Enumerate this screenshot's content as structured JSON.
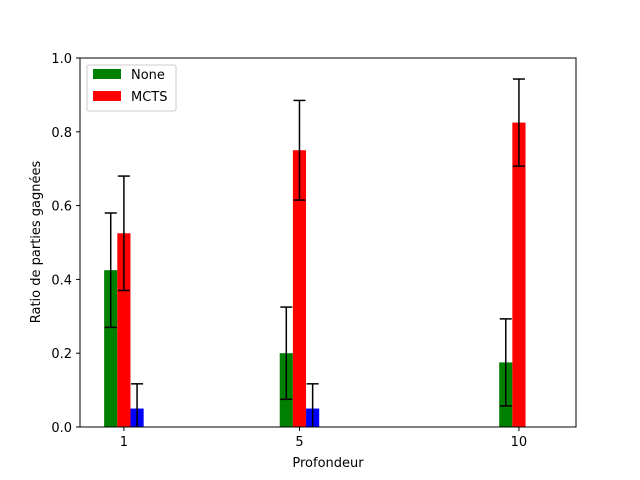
{
  "chart_data": {
    "type": "bar",
    "title": "",
    "xlabel": "Profondeur",
    "ylabel": "Ratio de parties gagnées",
    "ylim": [
      0,
      1.0
    ],
    "xlim": [
      0,
      11.3
    ],
    "yticks": [
      "0.0",
      "0.2",
      "0.4",
      "0.6",
      "0.8",
      "1.0"
    ],
    "categories": [
      "1",
      "5",
      "10"
    ],
    "x_positions": [
      1,
      5,
      10
    ],
    "bar_width_units": 0.3,
    "legend_position": "top-left",
    "series": [
      {
        "name": "None",
        "color": "#008000",
        "show_in_legend": true,
        "values": [
          0.425,
          0.2,
          0.175
        ],
        "errors": [
          0.155,
          0.125,
          0.118
        ]
      },
      {
        "name": "MCTS",
        "color": "#ff0000",
        "show_in_legend": true,
        "values": [
          0.525,
          0.75,
          0.825
        ],
        "errors": [
          0.155,
          0.135,
          0.118
        ]
      },
      {
        "name": "",
        "color": "#0000ff",
        "show_in_legend": false,
        "values": [
          0.05,
          0.05,
          0.0
        ],
        "errors": [
          0.067,
          0.067,
          0.0
        ]
      }
    ]
  }
}
